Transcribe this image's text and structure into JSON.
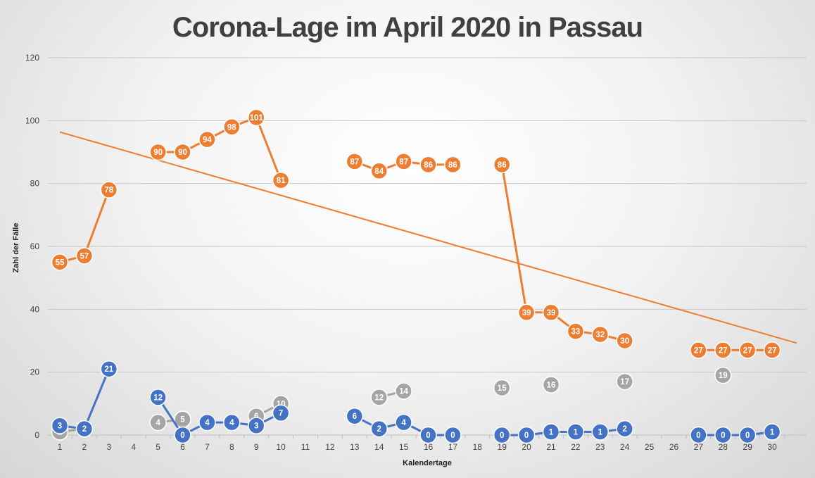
{
  "chart_data": {
    "type": "line",
    "title": "Corona-Lage im April 2020 in Passau",
    "xlabel": "Kalendertage",
    "ylabel": "Zahl der Fälle",
    "ylim": [
      0,
      120
    ],
    "yticks": [
      0,
      20,
      40,
      60,
      80,
      100,
      120
    ],
    "x": [
      1,
      2,
      3,
      4,
      5,
      6,
      7,
      8,
      9,
      10,
      11,
      12,
      13,
      14,
      15,
      16,
      17,
      18,
      19,
      20,
      21,
      22,
      23,
      24,
      25,
      26,
      27,
      28,
      29,
      30
    ],
    "grid": true,
    "legend": "none",
    "series": [
      {
        "color": "#ed7d31",
        "values": [
          55,
          57,
          78,
          null,
          90,
          90,
          94,
          98,
          101,
          81,
          null,
          null,
          87,
          84,
          87,
          86,
          86,
          null,
          86,
          39,
          39,
          33,
          32,
          30,
          null,
          null,
          27,
          27,
          27,
          27
        ]
      },
      {
        "color": "#4472c4",
        "values": [
          3,
          2,
          21,
          null,
          12,
          0,
          4,
          4,
          3,
          7,
          null,
          null,
          6,
          2,
          4,
          0,
          0,
          null,
          0,
          0,
          1,
          1,
          1,
          2,
          null,
          null,
          0,
          0,
          0,
          1
        ]
      },
      {
        "color": "#a5a5a5",
        "values": [
          1,
          2,
          null,
          null,
          4,
          5,
          null,
          null,
          6,
          10,
          null,
          null,
          null,
          12,
          14,
          null,
          null,
          null,
          15,
          null,
          16,
          null,
          null,
          17,
          null,
          null,
          null,
          19,
          null,
          null
        ]
      }
    ],
    "trendline": {
      "series_index": 0,
      "type": "linear",
      "color": "#ed7d31"
    }
  }
}
